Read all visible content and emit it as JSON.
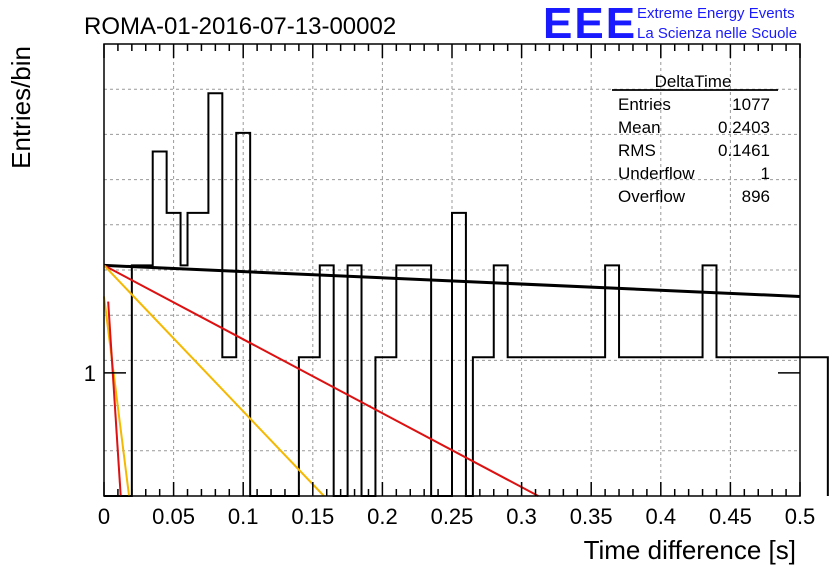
{
  "header": {
    "run_title": "ROMA-01-2016-07-13-00002",
    "logo_text": "EEE",
    "logo_line1": "Extreme Energy Events",
    "logo_line2": "La Scienza nelle Scuole",
    "logo_color": "#1a1aff"
  },
  "stats": {
    "title": "DeltaTime",
    "rows": [
      {
        "key": "Entries",
        "value": "1077"
      },
      {
        "key": "Mean",
        "value": "0.2403"
      },
      {
        "key": "RMS",
        "value": "0.1461"
      },
      {
        "key": "Underflow",
        "value": "1"
      },
      {
        "key": "Overflow",
        "value": "896"
      }
    ]
  },
  "chart_data": {
    "type": "line",
    "xlabel": "Time difference [s]",
    "ylabel": "Entries/bin",
    "xlim": [
      0,
      0.5
    ],
    "ylim": [
      0.68,
      2.8
    ],
    "yscale": "log",
    "grid": true,
    "x_ticks": [
      "0",
      "0.05",
      "0.1",
      "0.15",
      "0.2",
      "0.25",
      "0.3",
      "0.35",
      "0.4",
      "0.45",
      "0.5"
    ],
    "y_ticks": [
      "1"
    ],
    "bin_width": 0.005,
    "histogram": [
      0.68,
      0.68,
      0.68,
      0.68,
      1.4,
      1.4,
      1.4,
      2,
      2,
      1.65,
      1.65,
      1.4,
      1.65,
      1.65,
      1.65,
      2.4,
      2.4,
      1.05,
      1.05,
      2.12,
      2.12,
      0.68,
      0.68,
      0.68,
      0.68,
      0.68,
      0.68,
      0.68,
      1.05,
      1.05,
      1.05,
      1.4,
      1.4,
      0.68,
      0.68,
      1.4,
      1.4,
      0.68,
      0.68,
      1.05,
      1.05,
      1.05,
      1.4,
      1.4,
      1.4,
      1.4,
      1.4,
      0.68,
      0.68,
      0.68,
      1.65,
      1.65,
      0.68,
      1.05,
      1.05,
      1.05,
      1.4,
      1.4,
      1.05,
      1.05,
      1.05,
      1.05,
      1.05,
      1.05,
      1.05,
      1.05,
      1.05,
      1.05,
      1.05,
      1.05,
      1.05,
      1.05,
      1.4,
      1.4,
      1.05,
      1.05,
      1.05,
      1.05,
      1.05,
      1.05,
      1.05,
      1.05,
      1.05,
      1.05,
      1.05,
      1.05,
      1.4,
      1.4,
      1.05,
      1.05,
      1.05,
      1.05,
      1.05,
      1.05,
      1.05,
      1.05,
      1.05,
      1.05,
      1.05,
      1.05,
      1.05,
      1.05,
      1.05,
      1.05
    ],
    "series": [],
    "fit_lines": [
      {
        "color": "#000000",
        "x": [
          0,
          0.5
        ],
        "y": [
          1.4,
          1.27
        ]
      },
      {
        "color": "#dd1111",
        "x": [
          0,
          0.312
        ],
        "y": [
          1.4,
          0.68
        ]
      },
      {
        "color": "#f5b800",
        "x": [
          0,
          0.158
        ],
        "y": [
          1.4,
          0.68
        ]
      },
      {
        "color": "#f5b800",
        "x": [
          0,
          0.018
        ],
        "y": [
          1.27,
          0.68
        ]
      },
      {
        "color": "#dd1111",
        "x": [
          0.003,
          0.012
        ],
        "y": [
          1.25,
          0.68
        ]
      }
    ]
  }
}
